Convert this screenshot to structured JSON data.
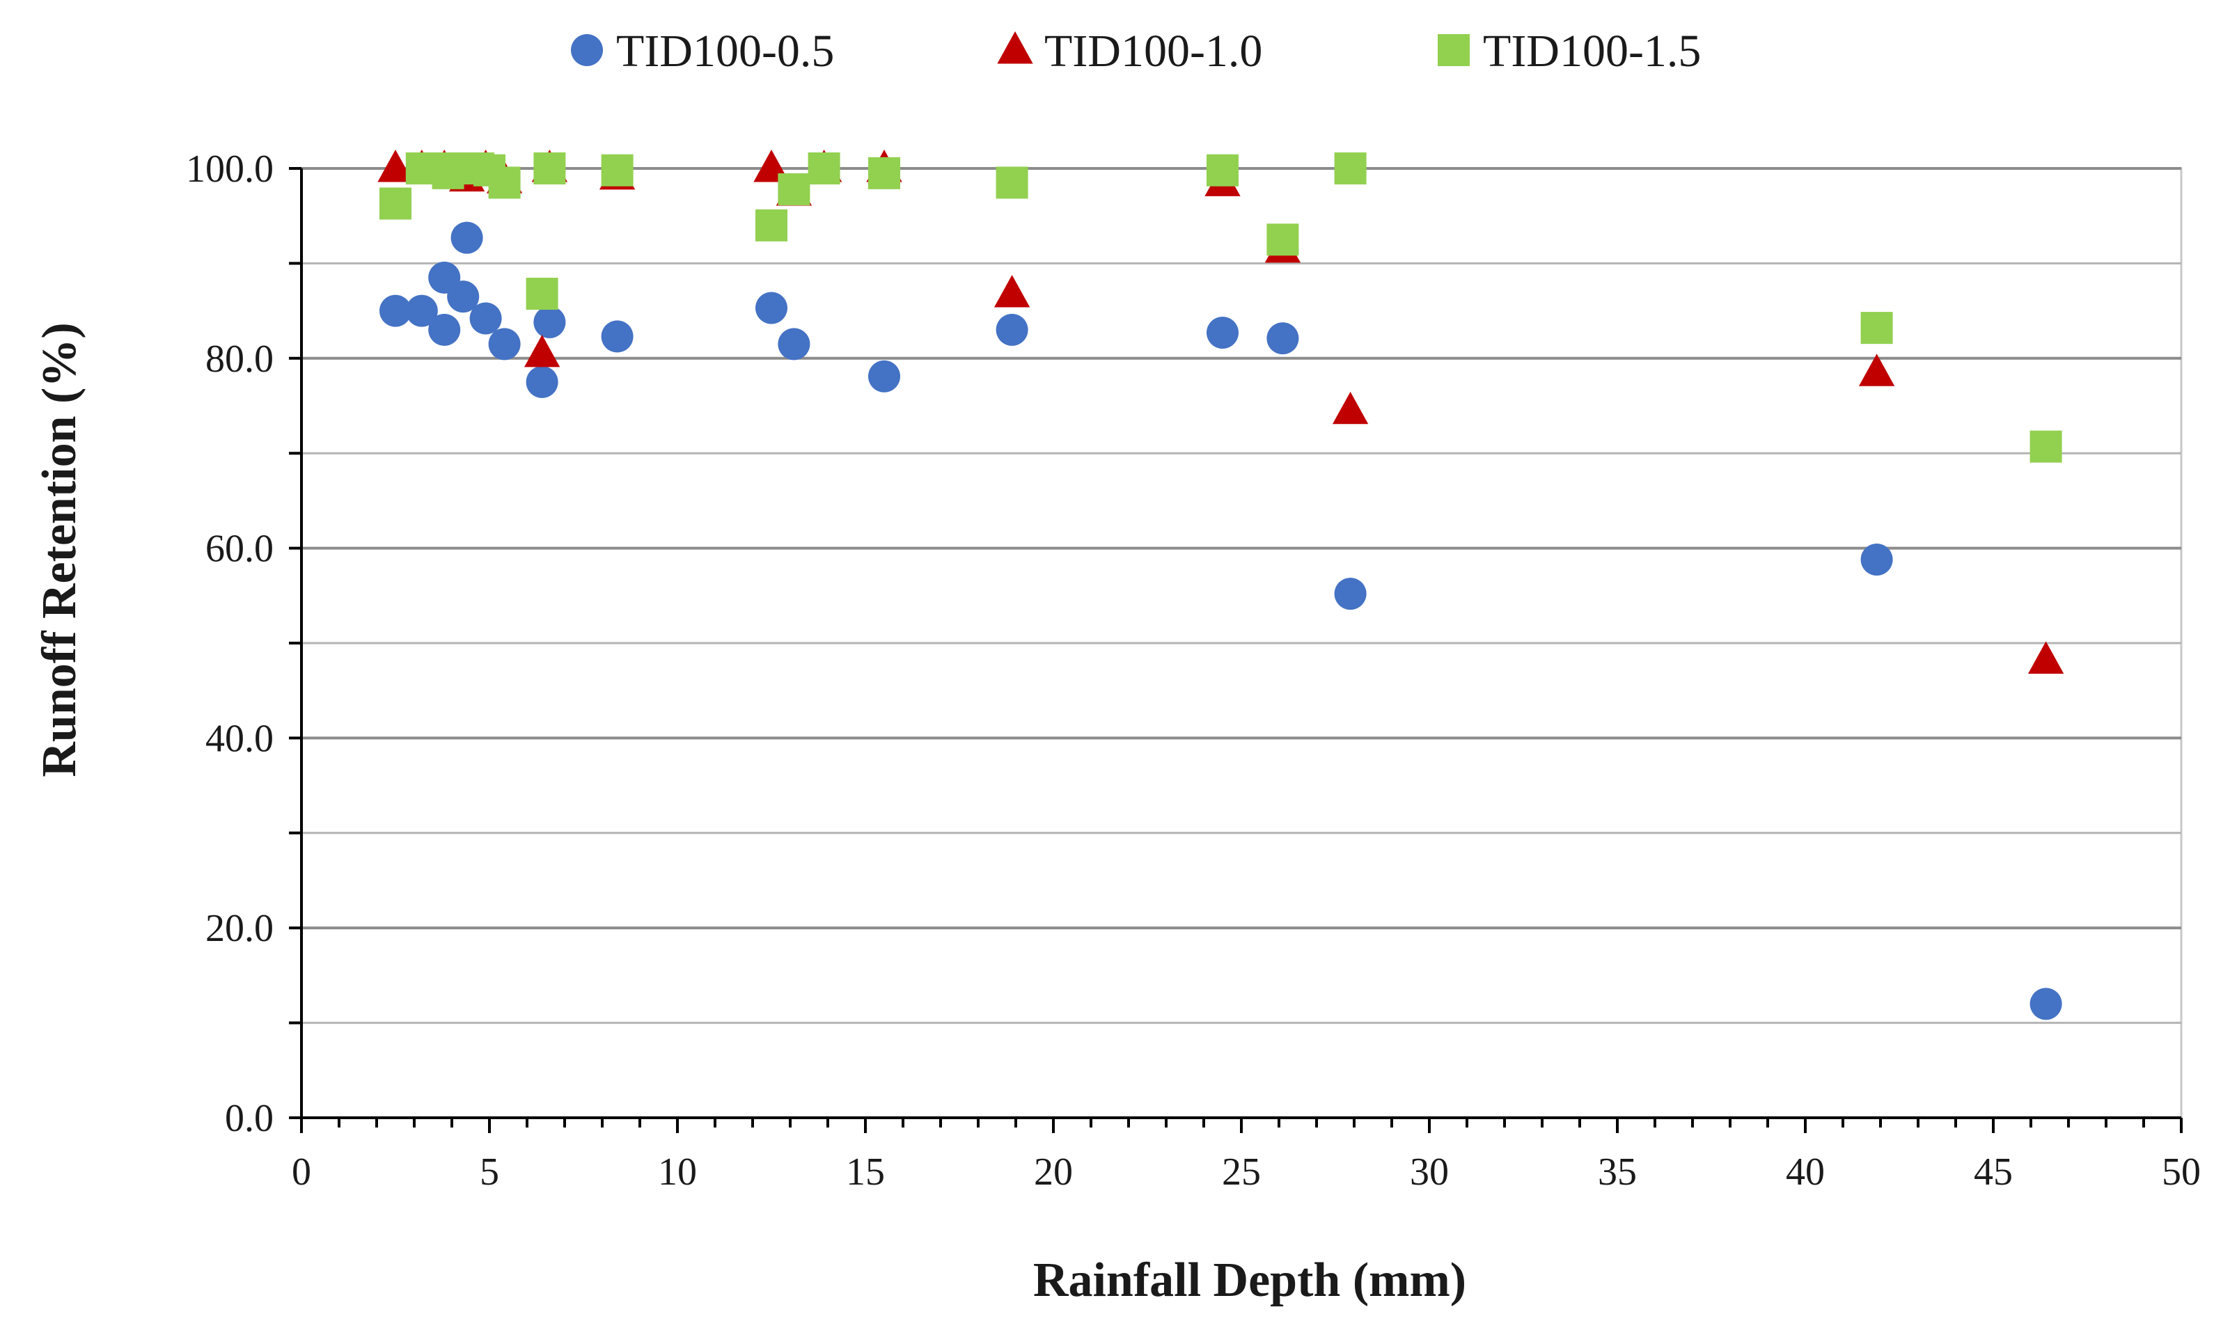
{
  "chart_data": {
    "type": "scatter",
    "title": "",
    "xlabel": "Rainfall Depth (mm)",
    "ylabel": "Runoff Retention (%)",
    "xlim": [
      0,
      50
    ],
    "ylim": [
      0,
      100
    ],
    "x_ticks": [
      "0",
      "5",
      "10",
      "15",
      "20",
      "25",
      "30",
      "35",
      "40",
      "45",
      "50"
    ],
    "y_ticks": [
      "0.0",
      "20.0",
      "40.0",
      "60.0",
      "80.0",
      "100.0"
    ],
    "grid": "horizontal",
    "legend_position": "top-center",
    "series": [
      {
        "name": "TID100-0.5",
        "marker": "circle",
        "color": "#4472C4",
        "x": [
          2.5,
          3.2,
          3.8,
          3.8,
          4.3,
          4.4,
          4.9,
          5.4,
          6.4,
          6.6,
          8.4,
          12.5,
          13.1,
          15.5,
          18.9,
          24.5,
          26.1,
          27.9,
          41.9,
          46.4
        ],
        "y": [
          85.0,
          85.0,
          88.5,
          83.0,
          86.5,
          92.7,
          84.2,
          81.5,
          77.5,
          83.8,
          82.3,
          85.3,
          81.5,
          78.1,
          83.0,
          82.7,
          82.1,
          55.2,
          58.8,
          12.0
        ]
      },
      {
        "name": "TID100-1.0",
        "marker": "triangle",
        "color": "#C00000",
        "x": [
          2.5,
          3.2,
          3.8,
          4.4,
          4.9,
          5.4,
          6.4,
          6.6,
          8.4,
          12.5,
          13.1,
          13.9,
          15.5,
          18.9,
          24.5,
          26.1,
          27.9,
          41.9,
          46.4
        ],
        "y": [
          100.0,
          100.0,
          100.0,
          99.0,
          100.0,
          98.8,
          80.5,
          100.0,
          99.2,
          100.0,
          97.5,
          100.0,
          100.0,
          86.8,
          98.5,
          91.5,
          74.5,
          78.5,
          48.2
        ]
      },
      {
        "name": "TID100-1.5",
        "marker": "square",
        "color": "#92D050",
        "x": [
          2.5,
          3.2,
          3.6,
          3.9,
          4.3,
          4.7,
          5.0,
          5.4,
          6.4,
          6.6,
          8.4,
          12.5,
          13.1,
          13.9,
          15.5,
          18.9,
          24.5,
          26.1,
          27.9,
          41.9,
          46.4
        ],
        "y": [
          96.3,
          100.0,
          100.0,
          99.5,
          100.0,
          100.0,
          99.8,
          98.5,
          86.8,
          100.0,
          99.8,
          94.0,
          97.8,
          100.0,
          99.5,
          98.5,
          99.8,
          92.5,
          100.0,
          83.2,
          70.7
        ]
      }
    ]
  }
}
